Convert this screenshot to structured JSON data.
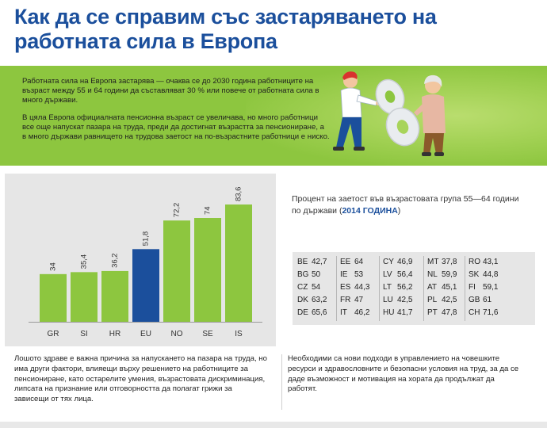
{
  "title": "Как да се справим със застаряването на работната сила в Европа",
  "intro": {
    "p1": "Работната сила на Европа застарява — очаква се до 2030 година работниците на възраст между 55 и 64 години да съставляват 30 % или повече от работната сила в много държави.",
    "p2": "В цяла Европа официалната пенсионна възраст се увеличава, но много работници все още напускат пазара на труда, преди да достигнат възрастта за пенсиониране, а в много държави равнището на трудова заетост на по-възрастните работници е ниско."
  },
  "illustration": {
    "icon": "workers-pushing-number-icon"
  },
  "chart_data": {
    "type": "bar",
    "categories": [
      "GR",
      "SI",
      "HR",
      "EU",
      "NO",
      "SE",
      "IS"
    ],
    "values": [
      34,
      35.4,
      36.2,
      51.8,
      72.2,
      74,
      83.6
    ],
    "value_labels": [
      "34",
      "35,4",
      "36,2",
      "51,8",
      "72,2",
      "74",
      "83,6"
    ],
    "highlight_category": "EU",
    "colors": {
      "default": "#8dc63f",
      "highlight": "#1b4f9c"
    },
    "ylim": [
      0,
      100
    ],
    "title": "",
    "xlabel": "",
    "ylabel": ""
  },
  "stats": {
    "title_main": "Процент на заетост във възрастовата група 55—64 години по държави (",
    "title_highlight": "2014 ГОДИНА",
    "title_end": ")",
    "columns": [
      [
        {
          "code": "BE",
          "value": "42,7"
        },
        {
          "code": "BG",
          "value": "50"
        },
        {
          "code": "CZ",
          "value": "54"
        },
        {
          "code": "DK",
          "value": "63,2"
        },
        {
          "code": "DE",
          "value": "65,6"
        }
      ],
      [
        {
          "code": "EE",
          "value": "64"
        },
        {
          "code": "IE",
          "value": "53"
        },
        {
          "code": "ES",
          "value": "44,3"
        },
        {
          "code": "FR",
          "value": "47"
        },
        {
          "code": "IT",
          "value": "46,2"
        }
      ],
      [
        {
          "code": "CY",
          "value": "46,9"
        },
        {
          "code": "LV",
          "value": "56,4"
        },
        {
          "code": "LT",
          "value": "56,2"
        },
        {
          "code": "LU",
          "value": "42,5"
        },
        {
          "code": "HU",
          "value": "41,7"
        }
      ],
      [
        {
          "code": "MT",
          "value": "37,8"
        },
        {
          "code": "NL",
          "value": "59,9"
        },
        {
          "code": "AT",
          "value": "45,1"
        },
        {
          "code": "PL",
          "value": "42,5"
        },
        {
          "code": "PT",
          "value": "47,8"
        }
      ],
      [
        {
          "code": "RO",
          "value": "43,1"
        },
        {
          "code": "SK",
          "value": "44,8"
        },
        {
          "code": "FI",
          "value": "59,1"
        },
        {
          "code": "GB",
          "value": "61"
        },
        {
          "code": "CH",
          "value": "71,6"
        }
      ]
    ]
  },
  "bottom": {
    "left": "Лошото здраве е важна причина за напускането на пазара на труда, но има други фактори, влияещи върху решението на работниците за пенсиониране, като остарелите умения, възрастовата дискриминация, липсата на признание или отговорността да полагат грижи за зависещи от тях лица.",
    "right": "Необходими са нови подходи в управлението на човешките ресурси и здравословните и безопасни условия на труд, за да се даде възможност и мотивация на хората да продължат да работят."
  }
}
